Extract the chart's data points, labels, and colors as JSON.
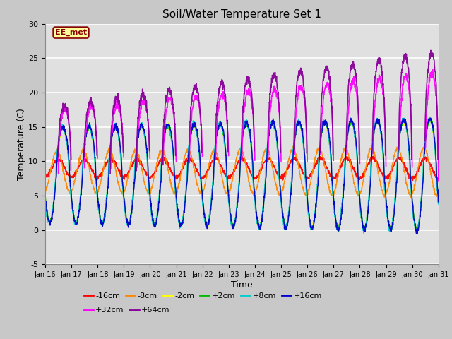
{
  "title": "Soil/Water Temperature Set 1",
  "xlabel": "Time",
  "ylabel": "Temperature (C)",
  "ylim": [
    -5,
    30
  ],
  "days": 15,
  "xtick_labels": [
    "Jan 16",
    "Jan 17",
    "Jan 18",
    "Jan 19",
    "Jan 20",
    "Jan 21",
    "Jan 22",
    "Jan 23",
    "Jan 24",
    "Jan 25",
    "Jan 26",
    "Jan 27",
    "Jan 28",
    "Jan 29",
    "Jan 30",
    "Jan 31"
  ],
  "ytick_values": [
    -5,
    0,
    5,
    10,
    15,
    20,
    25,
    30
  ],
  "series_labels": [
    "-16cm",
    "-8cm",
    "-2cm",
    "+2cm",
    "+8cm",
    "+16cm",
    "+32cm",
    "+64cm"
  ],
  "series_colors": [
    "#ff0000",
    "#ff8800",
    "#ffff00",
    "#00bb00",
    "#00cccc",
    "#0000cc",
    "#ff00ff",
    "#880099"
  ],
  "watermark_text": "EE_met",
  "watermark_bg": "#ffff99",
  "watermark_fg": "#880000",
  "fig_bg": "#c8c8c8",
  "plot_bg": "#e0e0e0",
  "pts_per_day": 144
}
